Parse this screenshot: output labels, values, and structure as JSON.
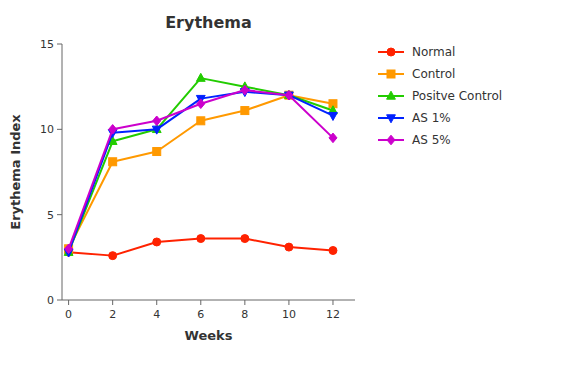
{
  "chart_data": {
    "type": "line",
    "title": "Erythema",
    "xlabel": "Weeks",
    "ylabel": "Erythema Index",
    "x": [
      0,
      2,
      4,
      6,
      8,
      10,
      12
    ],
    "series": [
      {
        "name": "Normal",
        "color": "#ff2200",
        "marker": "circle",
        "values": [
          2.8,
          2.6,
          3.4,
          3.6,
          3.6,
          3.1,
          2.9
        ]
      },
      {
        "name": "Control",
        "color": "#ff9900",
        "marker": "square",
        "values": [
          3.0,
          8.1,
          8.7,
          10.5,
          11.1,
          12.0,
          11.5
        ]
      },
      {
        "name": "Positve Control",
        "color": "#22cc00",
        "marker": "triangle-up",
        "values": [
          2.8,
          9.3,
          10.0,
          13.0,
          12.5,
          12.0,
          11.1
        ]
      },
      {
        "name": "AS 1%",
        "color": "#0022ff",
        "marker": "triangle-down",
        "values": [
          2.8,
          9.8,
          10.0,
          11.8,
          12.2,
          12.0,
          10.8
        ]
      },
      {
        "name": "AS 5%",
        "color": "#cc00cc",
        "marker": "diamond",
        "values": [
          3.0,
          10.0,
          10.5,
          11.5,
          12.3,
          12.0,
          9.5
        ]
      }
    ],
    "xlim": [
      -0.3,
      13.0
    ],
    "xticks": [
      0,
      2,
      4,
      6,
      8,
      10,
      12
    ],
    "ylim": [
      0,
      15
    ],
    "yticks": [
      0,
      5,
      10,
      15
    ],
    "legend": "right",
    "grid": false
  }
}
